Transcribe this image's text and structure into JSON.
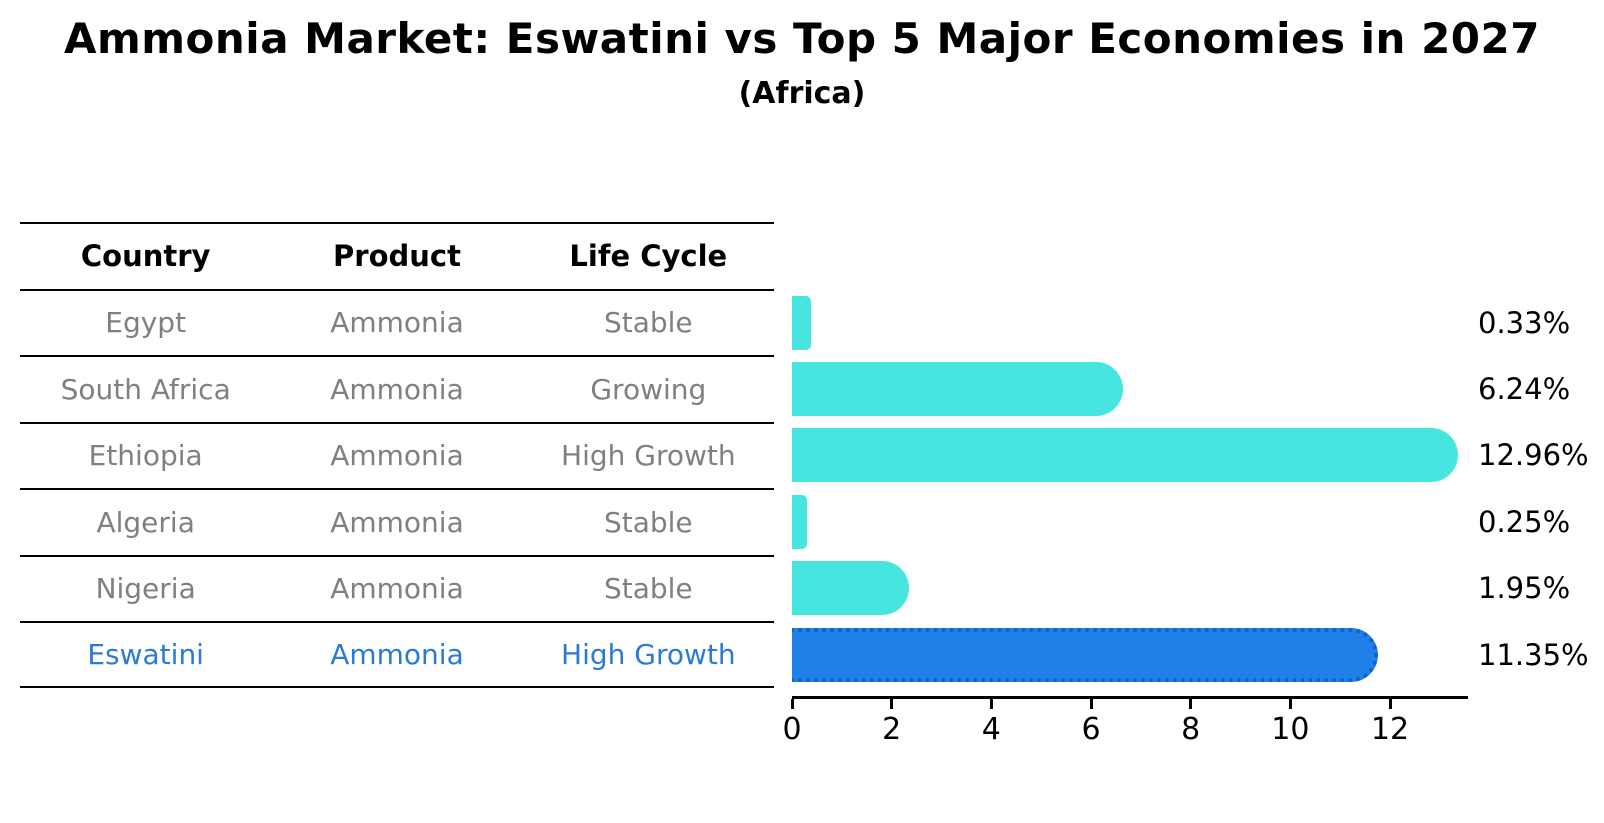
{
  "title": "Ammonia Market: Eswatini vs Top 5 Major Economies in 2027",
  "subtitle": "(Africa)",
  "table": {
    "headers": [
      "Country",
      "Product",
      "Life Cycle"
    ],
    "rows": [
      {
        "country": "Egypt",
        "product": "Ammonia",
        "life_cycle": "Stable",
        "highlight": false
      },
      {
        "country": "South Africa",
        "product": "Ammonia",
        "life_cycle": "Growing",
        "highlight": false
      },
      {
        "country": "Ethiopia",
        "product": "Ammonia",
        "life_cycle": "High Growth",
        "highlight": false
      },
      {
        "country": "Algeria",
        "product": "Ammonia",
        "life_cycle": "Stable",
        "highlight": false
      },
      {
        "country": "Nigeria",
        "product": "Ammonia",
        "life_cycle": "Stable",
        "highlight": false
      },
      {
        "country": "Eswatini",
        "product": "Ammonia",
        "life_cycle": "High Growth",
        "highlight": true
      }
    ]
  },
  "chart_data": {
    "type": "bar",
    "orientation": "horizontal",
    "title": "Ammonia Market: Eswatini vs Top 5 Major Economies in 2027 (Africa)",
    "categories": [
      "Egypt",
      "South Africa",
      "Ethiopia",
      "Algeria",
      "Nigeria",
      "Eswatini"
    ],
    "values": [
      0.33,
      6.24,
      12.96,
      0.25,
      1.95,
      11.35
    ],
    "value_labels": [
      "0.33%",
      "6.24%",
      "12.96%",
      "0.25%",
      "1.95%",
      "11.35%"
    ],
    "xticks": [
      0,
      2,
      4,
      6,
      8,
      10,
      12
    ],
    "xlim": [
      0,
      13.57
    ],
    "grid": false,
    "legend": false,
    "bar_color": "#47e5e0",
    "highlight_color": "#1f80e8",
    "highlight_edge_color": "#1261c9",
    "highlight_index": 5,
    "highlight_text_color": "#2c7bd2"
  },
  "colors": {
    "text_primary": "#000000",
    "text_muted": "#808080",
    "background": "#ffffff"
  }
}
